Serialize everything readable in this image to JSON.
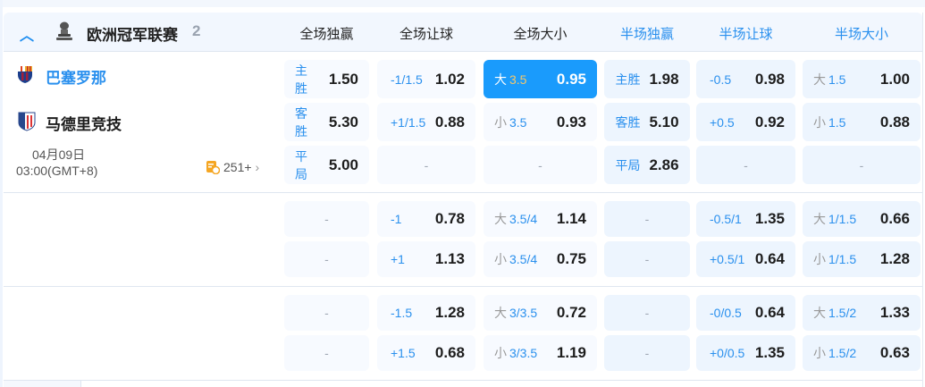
{
  "league": {
    "name": "欧洲冠军联赛",
    "count": "2",
    "icon": "trophy-icon",
    "collapse_icon": "chevron-up-icon"
  },
  "columns": [
    "全场独赢",
    "全场让球",
    "全场大小",
    "半场独赢",
    "半场让球",
    "半场大小"
  ],
  "match": {
    "home": "巴塞罗那",
    "away": "马德里竞技",
    "date": "04月09日",
    "time": "03:00(GMT+8)",
    "more_count": "251+"
  },
  "colors": {
    "accent": "#1a9bfc",
    "home_team": "#2a90ee",
    "highlight_line": "#f5c86a"
  },
  "groups": [
    {
      "rows": [
        [
          {
            "pre": "主胜",
            "odds": "1.50"
          },
          {
            "line": "-1/1.5",
            "odds": "1.02"
          },
          {
            "pre": "大",
            "line": "3.5",
            "odds": "0.95",
            "selected": true
          },
          {
            "pre": "主胜",
            "odds": "1.98"
          },
          {
            "line": "-0.5",
            "odds": "0.98"
          },
          {
            "pre": "大",
            "line": "1.5",
            "odds": "1.00"
          }
        ],
        [
          {
            "pre": "客胜",
            "odds": "5.30"
          },
          {
            "line": "+1/1.5",
            "odds": "0.88"
          },
          {
            "pre": "小",
            "line": "3.5",
            "odds": "0.93"
          },
          {
            "pre": "客胜",
            "odds": "5.10"
          },
          {
            "line": "+0.5",
            "odds": "0.92"
          },
          {
            "pre": "小",
            "line": "1.5",
            "odds": "0.88"
          }
        ],
        [
          {
            "pre": "平局",
            "odds": "5.00"
          },
          {
            "dash": "-"
          },
          {
            "dash": "-"
          },
          {
            "pre": "平局",
            "odds": "2.86"
          },
          {
            "dash": "-"
          },
          {
            "dash": "-"
          }
        ]
      ]
    },
    {
      "rows": [
        [
          {
            "dash": "-"
          },
          {
            "line": "-1",
            "odds": "0.78"
          },
          {
            "pre": "大",
            "line": "3.5/4",
            "odds": "1.14"
          },
          {
            "dash": "-"
          },
          {
            "line": "-0.5/1",
            "odds": "1.35"
          },
          {
            "pre": "大",
            "line": "1/1.5",
            "odds": "0.66"
          }
        ],
        [
          {
            "dash": "-"
          },
          {
            "line": "+1",
            "odds": "1.13"
          },
          {
            "pre": "小",
            "line": "3.5/4",
            "odds": "0.75"
          },
          {
            "dash": "-"
          },
          {
            "line": "+0.5/1",
            "odds": "0.64"
          },
          {
            "pre": "小",
            "line": "1/1.5",
            "odds": "1.28"
          }
        ]
      ]
    },
    {
      "rows": [
        [
          {
            "dash": "-"
          },
          {
            "line": "-1.5",
            "odds": "1.28"
          },
          {
            "pre": "大",
            "line": "3/3.5",
            "odds": "0.72"
          },
          {
            "dash": "-"
          },
          {
            "line": "-0/0.5",
            "odds": "0.64"
          },
          {
            "pre": "大",
            "line": "1.5/2",
            "odds": "1.33"
          }
        ],
        [
          {
            "dash": "-"
          },
          {
            "line": "+1.5",
            "odds": "0.68"
          },
          {
            "pre": "小",
            "line": "3/3.5",
            "odds": "1.19"
          },
          {
            "dash": "-"
          },
          {
            "line": "+0/0.5",
            "odds": "1.35"
          },
          {
            "pre": "小",
            "line": "1.5/2",
            "odds": "0.63"
          }
        ]
      ]
    }
  ]
}
